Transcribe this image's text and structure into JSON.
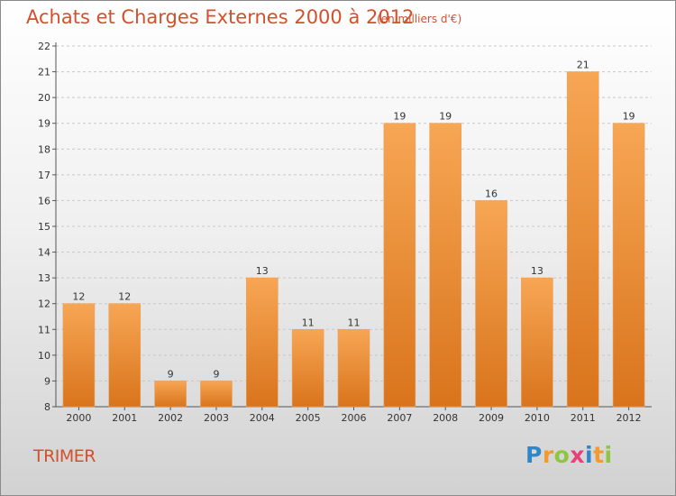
{
  "chart_data": {
    "type": "bar",
    "title": "Achats et Charges Externes 2000 à 2012",
    "subtitle": "(en milliers d'€)",
    "categories": [
      "2000",
      "2001",
      "2002",
      "2003",
      "2004",
      "2005",
      "2006",
      "2007",
      "2008",
      "2009",
      "2010",
      "2011",
      "2012"
    ],
    "values": [
      12,
      12,
      9,
      9,
      13,
      11,
      11,
      19,
      19,
      16,
      13,
      21,
      19
    ],
    "ylim": [
      8,
      22
    ],
    "yticks": [
      8,
      9,
      10,
      11,
      12,
      13,
      14,
      15,
      16,
      17,
      18,
      19,
      20,
      21,
      22
    ],
    "grid": true,
    "bar_color": "#f0903a"
  },
  "place_name": "TRIMER",
  "logo": {
    "letters": [
      {
        "ch": "P",
        "color": "#2f86c8"
      },
      {
        "ch": "r",
        "color": "#f29a2e"
      },
      {
        "ch": "o",
        "color": "#8dc63f"
      },
      {
        "ch": "x",
        "color": "#e8407a"
      },
      {
        "ch": "i",
        "color": "#2f86c8"
      },
      {
        "ch": "t",
        "color": "#f29a2e"
      },
      {
        "ch": "i",
        "color": "#8dc63f"
      }
    ]
  }
}
